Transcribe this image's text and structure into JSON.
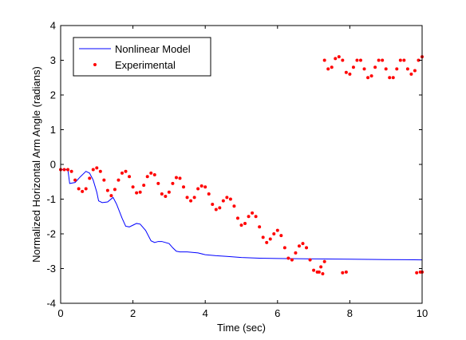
{
  "chart_data": {
    "type": "line",
    "xlabel": "Time (sec)",
    "ylabel": "Normalized Horizontal Arm Angle (radians)",
    "xlim": [
      0,
      10
    ],
    "ylim": [
      -4,
      4
    ],
    "xticks": [
      0,
      2,
      4,
      6,
      8,
      10
    ],
    "yticks": [
      -4,
      -3,
      -2,
      -1,
      0,
      1,
      2,
      3,
      4
    ],
    "grid": false,
    "legend_placement": "top-left",
    "series": [
      {
        "name": "Nonlinear Model",
        "style": "line",
        "color": "#0000ff",
        "x": [
          0.0,
          0.2,
          0.25,
          0.4,
          0.55,
          0.7,
          0.8,
          0.9,
          1.0,
          1.05,
          1.15,
          1.3,
          1.45,
          1.55,
          1.7,
          1.8,
          1.9,
          2.0,
          2.1,
          2.2,
          2.35,
          2.5,
          2.6,
          2.7,
          2.8,
          3.0,
          3.1,
          3.2,
          3.3,
          3.5,
          3.8,
          4.0,
          4.3,
          4.6,
          5.0,
          5.5,
          6.0,
          7.0,
          8.0,
          9.0,
          10.0
        ],
        "y": [
          -0.15,
          -0.15,
          -0.55,
          -0.52,
          -0.35,
          -0.2,
          -0.25,
          -0.45,
          -0.8,
          -1.05,
          -1.1,
          -1.08,
          -0.95,
          -1.15,
          -1.55,
          -1.78,
          -1.8,
          -1.75,
          -1.7,
          -1.72,
          -1.9,
          -2.2,
          -2.25,
          -2.22,
          -2.22,
          -2.28,
          -2.4,
          -2.5,
          -2.52,
          -2.52,
          -2.55,
          -2.6,
          -2.63,
          -2.65,
          -2.68,
          -2.7,
          -2.71,
          -2.72,
          -2.73,
          -2.74,
          -2.75
        ]
      },
      {
        "name": "Experimental",
        "style": "markers",
        "color": "#ff0000",
        "segments": [
          {
            "x": [
              0.0,
              0.1,
              0.2,
              0.3,
              0.4,
              0.5,
              0.6,
              0.7,
              0.8,
              0.9,
              1.0,
              1.1,
              1.2,
              1.3,
              1.4,
              1.5,
              1.6,
              1.7,
              1.8,
              1.9,
              2.0,
              2.1,
              2.2,
              2.3,
              2.4,
              2.5,
              2.6,
              2.7,
              2.8,
              2.9,
              3.0,
              3.1,
              3.2,
              3.3,
              3.4,
              3.5,
              3.6,
              3.7,
              3.8,
              3.9,
              4.0,
              4.1,
              4.2,
              4.3,
              4.4,
              4.5,
              4.6,
              4.7,
              4.8,
              4.9,
              5.0,
              5.1,
              5.2,
              5.3,
              5.4,
              5.5,
              5.6,
              5.7,
              5.8,
              5.9,
              6.0,
              6.1,
              6.2,
              6.3,
              6.4,
              6.5,
              6.6,
              6.7,
              6.8,
              6.9,
              7.0,
              7.1,
              7.2,
              7.3
            ],
            "y": [
              -0.15,
              -0.15,
              -0.15,
              -0.2,
              -0.45,
              -0.7,
              -0.78,
              -0.7,
              -0.4,
              -0.15,
              -0.1,
              -0.2,
              -0.45,
              -0.75,
              -0.9,
              -0.72,
              -0.45,
              -0.25,
              -0.2,
              -0.35,
              -0.65,
              -0.82,
              -0.8,
              -0.6,
              -0.35,
              -0.25,
              -0.3,
              -0.55,
              -0.85,
              -0.92,
              -0.8,
              -0.55,
              -0.38,
              -0.4,
              -0.65,
              -0.95,
              -1.05,
              -0.95,
              -0.7,
              -0.62,
              -0.65,
              -0.85,
              -1.15,
              -1.3,
              -1.25,
              -1.05,
              -0.95,
              -1.0,
              -1.2,
              -1.55,
              -1.75,
              -1.7,
              -1.5,
              -1.4,
              -1.5,
              -1.8,
              -2.1,
              -2.25,
              -2.15,
              -2.0,
              -1.9,
              -2.05,
              -2.4,
              -2.7,
              -2.75,
              -2.55,
              -2.35,
              -2.28,
              -2.4,
              -2.75,
              -3.05,
              -3.1,
              -2.95,
              -2.8
            ]
          },
          {
            "x": [
              7.3,
              7.4,
              7.5,
              7.6,
              7.7,
              7.8,
              7.9,
              8.0,
              8.1,
              8.2,
              8.3,
              8.4,
              8.5,
              8.6,
              8.7,
              8.8,
              8.9,
              9.0,
              9.1,
              9.2,
              9.3,
              9.4,
              9.5,
              9.6,
              9.7,
              9.8,
              9.9,
              10.0
            ],
            "y": [
              3.0,
              2.75,
              2.8,
              3.05,
              3.1,
              3.0,
              2.65,
              2.6,
              2.8,
              3.0,
              3.0,
              2.75,
              2.5,
              2.55,
              2.8,
              3.0,
              3.0,
              2.75,
              2.5,
              2.5,
              2.75,
              3.0,
              3.0,
              2.75,
              2.6,
              2.7,
              3.0,
              3.1
            ]
          },
          {
            "x": [
              7.15,
              7.25,
              7.8,
              7.9,
              9.85,
              9.95,
              10.0
            ],
            "y": [
              -3.1,
              -3.15,
              -3.12,
              -3.1,
              -3.12,
              -3.1,
              -3.1
            ]
          }
        ]
      }
    ]
  }
}
